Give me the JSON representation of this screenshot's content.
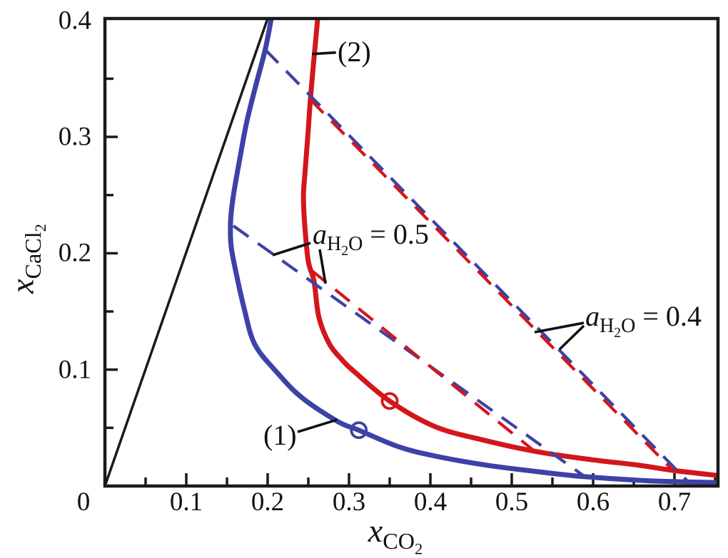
{
  "figure": {
    "background": "#ffffff",
    "frame_color": "#1a1a1a",
    "text_color": "#111111"
  },
  "chart_data": {
    "type": "line",
    "title": "",
    "grid": false,
    "legend": "none",
    "xlabel": {
      "plain": "xCO2",
      "parts": [
        {
          "text": "x",
          "italic": true
        },
        {
          "text": "CO",
          "sub": 1
        },
        {
          "text": "2",
          "sub": 2
        }
      ]
    },
    "ylabel": {
      "plain": "xCaCl2",
      "parts": [
        {
          "text": "x",
          "italic": true
        },
        {
          "text": "CaCl",
          "sub": 1
        },
        {
          "text": "2",
          "sub": 2
        }
      ]
    },
    "xlim": [
      0,
      0.7535
    ],
    "ylim": [
      0,
      0.4017
    ],
    "x_ticks": [
      {
        "v": 0,
        "label": "0",
        "dx": -30
      },
      {
        "v": 0.1,
        "label": "0.1",
        "dx": 0
      },
      {
        "v": 0.2,
        "label": "0.2",
        "dx": 0
      },
      {
        "v": 0.3,
        "label": "0.3",
        "dx": 0
      },
      {
        "v": 0.4,
        "label": "0.4",
        "dx": 0
      },
      {
        "v": 0.5,
        "label": "0.5",
        "dx": 0
      },
      {
        "v": 0.6,
        "label": "0.6",
        "dx": 0
      },
      {
        "v": 0.7,
        "label": "0.7",
        "dx": 0
      }
    ],
    "x_minor_ticks": [
      0.05,
      0.15,
      0.25,
      0.35,
      0.45,
      0.55,
      0.65,
      0.75
    ],
    "y_ticks": [
      {
        "v": 0.1,
        "label": "0.1"
      },
      {
        "v": 0.2,
        "label": "0.2"
      },
      {
        "v": 0.3,
        "label": "0.3"
      },
      {
        "v": 0.4,
        "label": "0.4"
      }
    ],
    "y_minor_ticks": [
      0.05,
      0.15,
      0.25,
      0.35
    ],
    "series": [
      {
        "name": "reference-line",
        "color": "#1a1a1a",
        "style": "solid",
        "width": 3.5,
        "smooth": false,
        "points": [
          [
            0,
            0
          ],
          [
            0.2,
            0.4017
          ]
        ]
      },
      {
        "name": "solubility-curve-1",
        "label": "(1)",
        "color": "#3c42a6",
        "style": "solid",
        "width": 7,
        "smooth": true,
        "points": [
          [
            0.2045,
            0.4017
          ],
          [
            0.197,
            0.375
          ],
          [
            0.185,
            0.343
          ],
          [
            0.174,
            0.312
          ],
          [
            0.166,
            0.282
          ],
          [
            0.158,
            0.25
          ],
          [
            0.1545,
            0.228
          ],
          [
            0.155,
            0.207
          ],
          [
            0.161,
            0.184
          ],
          [
            0.171,
            0.153
          ],
          [
            0.184,
            0.122
          ],
          [
            0.211,
            0.098
          ],
          [
            0.242,
            0.076
          ],
          [
            0.286,
            0.0555
          ],
          [
            0.312,
            0.048
          ],
          [
            0.36,
            0.034
          ],
          [
            0.404,
            0.026
          ],
          [
            0.468,
            0.018
          ],
          [
            0.53,
            0.0125
          ],
          [
            0.59,
            0.008
          ],
          [
            0.67,
            0.0045
          ],
          [
            0.7535,
            0.003
          ]
        ]
      },
      {
        "name": "solubility-curve-2",
        "label": "(2)",
        "color": "#d3161c",
        "style": "solid",
        "width": 7,
        "smooth": true,
        "points": [
          [
            0.2615,
            0.4017
          ],
          [
            0.256,
            0.36
          ],
          [
            0.2525,
            0.332
          ],
          [
            0.25,
            0.307
          ],
          [
            0.246,
            0.27
          ],
          [
            0.244,
            0.25
          ],
          [
            0.2455,
            0.225
          ],
          [
            0.25,
            0.193
          ],
          [
            0.257,
            0.176
          ],
          [
            0.263,
            0.145
          ],
          [
            0.276,
            0.122
          ],
          [
            0.292,
            0.108
          ],
          [
            0.307,
            0.098
          ],
          [
            0.35,
            0.073
          ],
          [
            0.406,
            0.051
          ],
          [
            0.468,
            0.039
          ],
          [
            0.535,
            0.029
          ],
          [
            0.6,
            0.0225
          ],
          [
            0.655,
            0.018
          ],
          [
            0.698,
            0.0135
          ],
          [
            0.7535,
            0.009
          ]
        ]
      },
      {
        "name": "tie-line-aH2O-0.5-curve-1",
        "activity": "0.5",
        "color": "#3c42a6",
        "style": "dashed",
        "width": 4.2,
        "smooth": false,
        "points": [
          [
            0.158,
            0.2235
          ],
          [
            0.59,
            0.008
          ]
        ]
      },
      {
        "name": "tie-line-aH2O-0.5-curve-2",
        "activity": "0.5",
        "color": "#d3161c",
        "style": "dashed",
        "width": 4.2,
        "smooth": false,
        "points": [
          [
            0.2545,
            0.185
          ],
          [
            0.527,
            0.0305
          ]
        ]
      },
      {
        "name": "tie-line-aH2O-0.4-curve-1",
        "activity": "0.4",
        "color": "#3c42a6",
        "style": "dashed",
        "width": 4.2,
        "smooth": false,
        "points": [
          [
            0.197,
            0.375
          ],
          [
            0.716,
            0.0043
          ]
        ]
      },
      {
        "name": "tie-line-aH2O-0.4-curve-2",
        "activity": "0.4",
        "color": "#d3161c",
        "style": "dashed",
        "width": 4.2,
        "smooth": false,
        "points": [
          [
            0.2525,
            0.332
          ],
          [
            0.698,
            0.0135
          ]
        ]
      }
    ],
    "markers": [
      {
        "name": "open-circle-marker-curve-1",
        "series": "solubility-curve-1",
        "shape": "open-circle",
        "x": 0.312,
        "y": 0.048,
        "color": "#3c42a6"
      },
      {
        "name": "open-circle-marker-curve-2",
        "series": "solubility-curve-2",
        "shape": "open-circle",
        "x": 0.35,
        "y": 0.073,
        "color": "#d3161c"
      }
    ],
    "annotations": [
      {
        "id": "curve-2-label",
        "plain": "(2)",
        "parts": [
          {
            "text": "(2)"
          }
        ],
        "x": 0.286,
        "y": 0.3729,
        "leaders": [
          [
            [
              0.2544,
              0.3712
            ],
            [
              0.2839,
              0.3725
            ]
          ]
        ]
      },
      {
        "id": "curve-1-label",
        "plain": "(1)",
        "parts": [
          {
            "text": "(1)"
          }
        ],
        "x": 0.1947,
        "y": 0.0435,
        "leaders": [
          [
            [
              0.2368,
              0.0465
            ],
            [
              0.2851,
              0.0569
            ]
          ]
        ]
      },
      {
        "id": "water-activity-0.5-label",
        "plain": "aH2O = 0.5",
        "parts": [
          {
            "text": "a",
            "italic": true
          },
          {
            "text": "H",
            "sub": 1
          },
          {
            "text": "2",
            "sub": 2
          },
          {
            "text": "O",
            "sub": 1
          },
          {
            "text": " = 0.5"
          }
        ],
        "x": 0.2553,
        "y": 0.2149,
        "leaders": [
          [
            [
              0.2526,
              0.2088
            ],
            [
              0.2061,
              0.1984
            ]
          ],
          [
            [
              0.264,
              0.2033
            ],
            [
              0.2711,
              0.1739
            ]
          ]
        ]
      },
      {
        "id": "water-activity-0.4-label",
        "plain": "aH2O = 0.4",
        "parts": [
          {
            "text": "a",
            "italic": true
          },
          {
            "text": "H",
            "sub": 1
          },
          {
            "text": "2",
            "sub": 2
          },
          {
            "text": "O",
            "sub": 1
          },
          {
            "text": " = 0.4"
          }
        ],
        "x": 0.5904,
        "y": 0.1445,
        "leaders": [
          [
            [
              0.5886,
              0.1402
            ],
            [
              0.5281,
              0.1322
            ]
          ],
          [
            [
              0.5886,
              0.1377
            ],
            [
              0.5588,
              0.1175
            ]
          ]
        ]
      }
    ]
  }
}
